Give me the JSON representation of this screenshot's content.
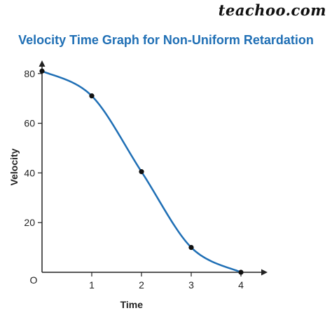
{
  "watermark": "teachoo.com",
  "colors": {
    "title": "#1f6fb5",
    "curve": "#1f6fb5",
    "axis": "#222222",
    "point": "#111111"
  },
  "chart_data": {
    "type": "line",
    "title": "Velocity Time Graph for Non-Uniform Retardation",
    "xlabel": "Time",
    "ylabel": "Velocity",
    "origin_label": "O",
    "xlim": [
      0,
      4.5
    ],
    "ylim": [
      0,
      85
    ],
    "x_ticks": [
      1,
      2,
      3,
      4
    ],
    "y_ticks": [
      20,
      40,
      60,
      80
    ],
    "grid": false,
    "series": [
      {
        "x": [
          0,
          1,
          2,
          3,
          4
        ],
        "y": [
          81,
          71,
          40.5,
          10,
          0
        ]
      }
    ]
  }
}
